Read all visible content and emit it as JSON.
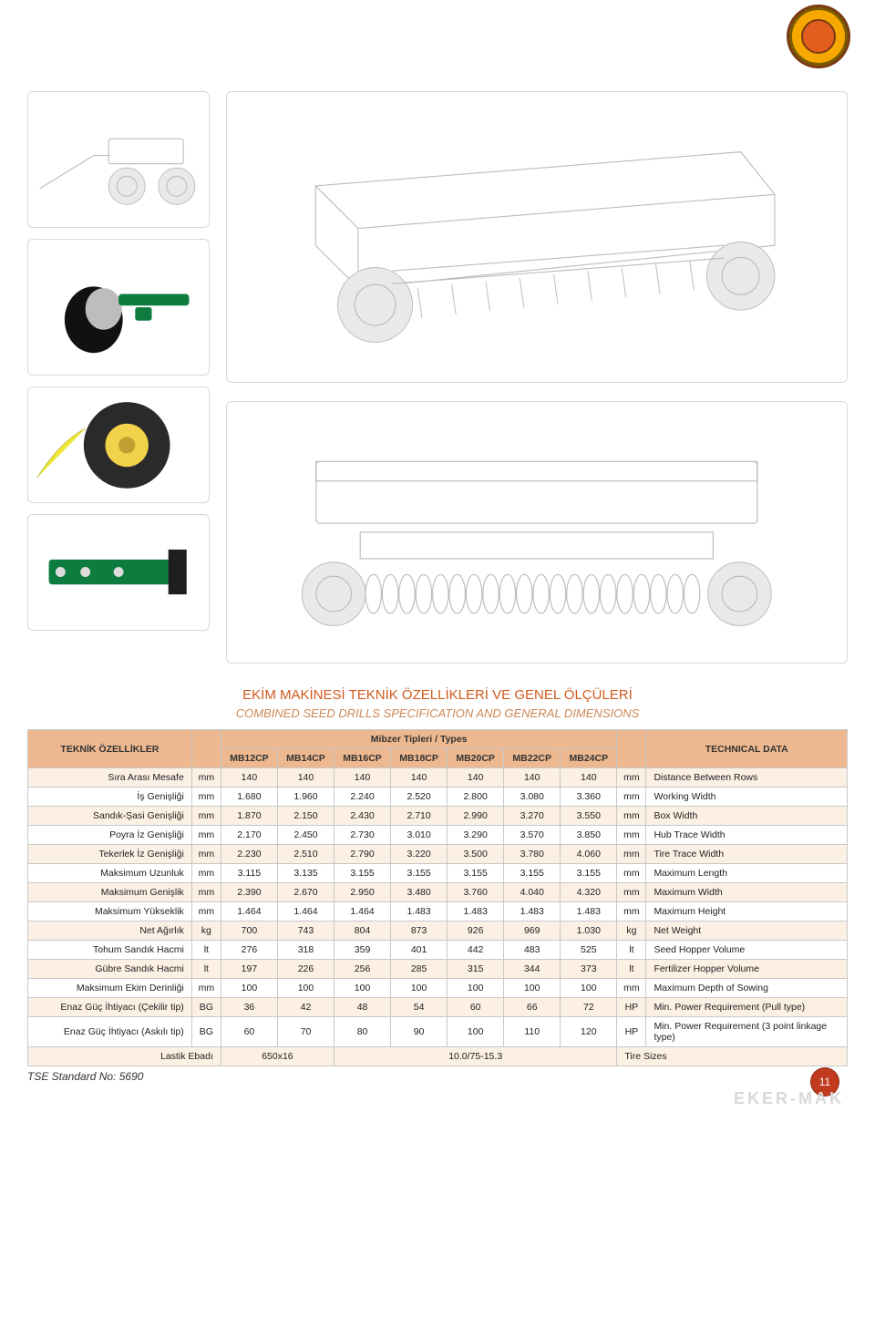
{
  "page": {
    "number": "11",
    "brand": "EKER-MAK",
    "tse": "TSE Standard No: 5690"
  },
  "title": {
    "main": "EKİM MAKİNESİ TEKNİK ÖZELLİKLERİ VE GENEL ÖLÇÜLERİ",
    "sub": "COMBINED SEED DRILLS SPECIFICATION AND GENERAL DIMENSIONS"
  },
  "colors": {
    "accent": "#d15a1f",
    "header_bg": "#edb88f",
    "row_alt_bg": "#fcefe4",
    "grid": "#c8c8c8"
  },
  "table": {
    "left_header": "TEKNİK ÖZELLİKLER",
    "type_header": "Mibzer Tipleri / Types",
    "right_header": "TECHNICAL DATA",
    "models": [
      "MB12CP",
      "MB14CP",
      "MB16CP",
      "MB18CP",
      "MB20CP",
      "MB22CP",
      "MB24CP"
    ],
    "rows": [
      {
        "tr": "Sıra Arası Mesafe",
        "unit": "mm",
        "vals": [
          "140",
          "140",
          "140",
          "140",
          "140",
          "140",
          "140"
        ],
        "unitR": "mm",
        "en": "Distance Between Rows"
      },
      {
        "tr": "İş Genişliği",
        "unit": "mm",
        "vals": [
          "1.680",
          "1.960",
          "2.240",
          "2.520",
          "2.800",
          "3.080",
          "3.360"
        ],
        "unitR": "mm",
        "en": "Working Width"
      },
      {
        "tr": "Sandık-Şasi Genişliği",
        "unit": "mm",
        "vals": [
          "1.870",
          "2.150",
          "2.430",
          "2.710",
          "2.990",
          "3.270",
          "3.550"
        ],
        "unitR": "mm",
        "en": "Box Width"
      },
      {
        "tr": "Poyra İz Genişliği",
        "unit": "mm",
        "vals": [
          "2.170",
          "2.450",
          "2.730",
          "3.010",
          "3.290",
          "3.570",
          "3.850"
        ],
        "unitR": "mm",
        "en": "Hub Trace Width"
      },
      {
        "tr": "Tekerlek İz Genişliği",
        "unit": "mm",
        "vals": [
          "2.230",
          "2.510",
          "2.790",
          "3.220",
          "3.500",
          "3.780",
          "4.060"
        ],
        "unitR": "mm",
        "en": "Tire Trace Width"
      },
      {
        "tr": "Maksimum Uzunluk",
        "unit": "mm",
        "vals": [
          "3.115",
          "3.135",
          "3.155",
          "3.155",
          "3.155",
          "3.155",
          "3.155"
        ],
        "unitR": "mm",
        "en": "Maximum Length"
      },
      {
        "tr": "Maksimum Genişlik",
        "unit": "mm",
        "vals": [
          "2.390",
          "2.670",
          "2.950",
          "3.480",
          "3.760",
          "4.040",
          "4.320"
        ],
        "unitR": "mm",
        "en": "Maximum Width"
      },
      {
        "tr": "Maksimum Yükseklik",
        "unit": "mm",
        "vals": [
          "1.464",
          "1.464",
          "1.464",
          "1.483",
          "1.483",
          "1.483",
          "1.483"
        ],
        "unitR": "mm",
        "en": "Maximum Height"
      },
      {
        "tr": "Net Ağırlık",
        "unit": "kg",
        "vals": [
          "700",
          "743",
          "804",
          "873",
          "926",
          "969",
          "1.030"
        ],
        "unitR": "kg",
        "en": "Net Weight"
      },
      {
        "tr": "Tohum Sandık Hacmi",
        "unit": "lt",
        "vals": [
          "276",
          "318",
          "359",
          "401",
          "442",
          "483",
          "525"
        ],
        "unitR": "lt",
        "en": "Seed Hopper Volume"
      },
      {
        "tr": "Gübre Sandık Hacmi",
        "unit": "lt",
        "vals": [
          "197",
          "226",
          "256",
          "285",
          "315",
          "344",
          "373"
        ],
        "unitR": "lt",
        "en": "Fertilizer Hopper Volume"
      },
      {
        "tr": "Maksimum Ekim Derinliği",
        "unit": "mm",
        "vals": [
          "100",
          "100",
          "100",
          "100",
          "100",
          "100",
          "100"
        ],
        "unitR": "mm",
        "en": "Maximum Depth of Sowing"
      },
      {
        "tr": "Enaz Güç İhtiyacı (Çekilir tip)",
        "unit": "BG",
        "vals": [
          "36",
          "42",
          "48",
          "54",
          "60",
          "66",
          "72"
        ],
        "unitR": "HP",
        "en": "Min. Power Requirement (Pull type)"
      },
      {
        "tr": "Enaz Güç İhtiyacı (Askılı tip)",
        "unit": "BG",
        "vals": [
          "60",
          "70",
          "80",
          "90",
          "100",
          "110",
          "120"
        ],
        "unitR": "HP",
        "en": "Min. Power Requirement (3 point linkage type)"
      }
    ],
    "last": {
      "tr": "Lastik Ebadı",
      "a": "650x16",
      "b": "10.0/75-15.3",
      "en": "Tire Sizes"
    }
  }
}
